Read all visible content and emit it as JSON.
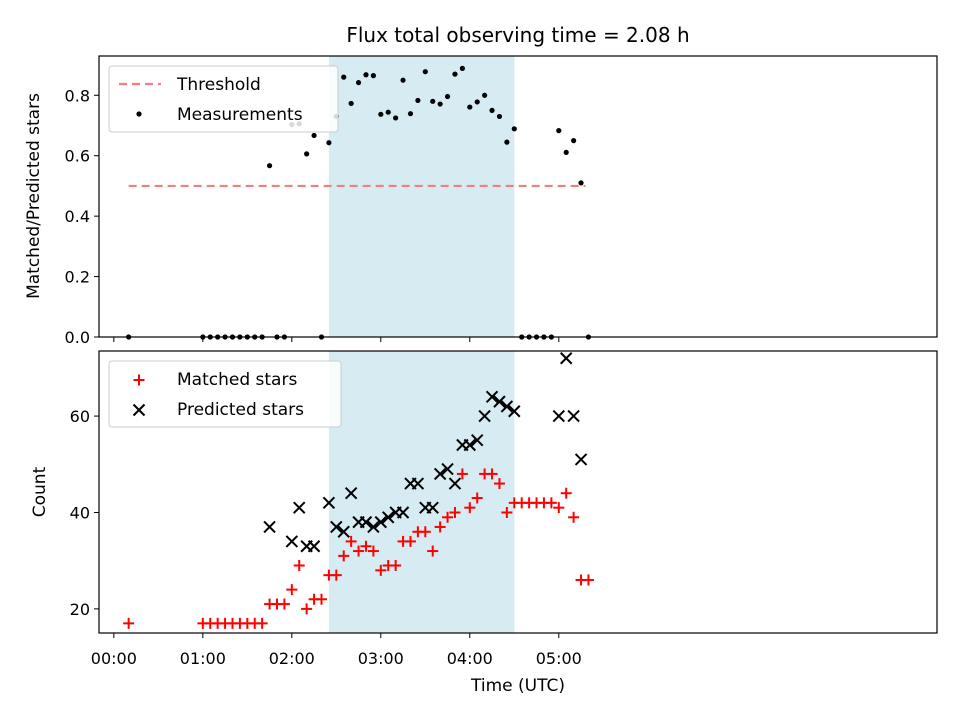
{
  "chart_data": {
    "title": "Flux total observing time = 2.08 h",
    "xlabel": "Time (UTC)",
    "x_unit": "minutes after 00:00 UTC",
    "xlim": [
      -10,
      555
    ],
    "xticks": [
      {
        "value": 0,
        "label": "00:00"
      },
      {
        "value": 60,
        "label": "01:00"
      },
      {
        "value": 120,
        "label": "02:00"
      },
      {
        "value": 180,
        "label": "03:00"
      },
      {
        "value": 240,
        "label": "04:00"
      },
      {
        "value": 300,
        "label": "05:00"
      }
    ],
    "shaded_interval": {
      "start": 145,
      "end": 270,
      "color": "#add8e6"
    },
    "panels": [
      {
        "type": "scatter",
        "ylabel": "Matched/Predicted stars",
        "ylim": [
          0,
          0.93
        ],
        "yticks": [
          0,
          0.2,
          0.4,
          0.6,
          0.8
        ],
        "ytick_labels": [
          "0.0",
          "0.2",
          "0.4",
          "0.6",
          "0.8"
        ],
        "legend": {
          "position": "top-left",
          "entries": [
            "Threshold",
            "Measurements"
          ]
        },
        "threshold": {
          "name": "Threshold",
          "value": 0.5,
          "x_start": 10,
          "x_end": 318,
          "color": "#f08080"
        },
        "series": [
          {
            "name": "Measurements",
            "marker": "dot",
            "color": "#000000",
            "x": [
              10,
              60,
              65,
              70,
              75,
              80,
              85,
              90,
              95,
              100,
              105,
              110,
              115,
              120,
              125,
              130,
              135,
              140,
              145,
              150,
              155,
              160,
              165,
              170,
              175,
              180,
              185,
              190,
              195,
              200,
              205,
              210,
              215,
              220,
              225,
              230,
              235,
              240,
              245,
              250,
              255,
              260,
              265,
              270,
              275,
              280,
              285,
              290,
              295,
              300,
              305,
              310,
              315,
              320
            ],
            "y": [
              0.0,
              0.0,
              0.0,
              0.0,
              0.0,
              0.0,
              0.0,
              0.0,
              0.0,
              0.0,
              0.567,
              0.0,
              0.0,
              0.703,
              0.706,
              0.606,
              0.667,
              0.0,
              0.643,
              0.73,
              0.86,
              0.773,
              0.842,
              0.868,
              0.865,
              0.737,
              0.744,
              0.725,
              0.85,
              0.739,
              0.783,
              0.878,
              0.78,
              0.771,
              0.796,
              0.87,
              0.889,
              0.761,
              0.778,
              0.8,
              0.75,
              0.73,
              0.645,
              0.689,
              0.0,
              0.0,
              0.0,
              0.0,
              0.0,
              0.683,
              0.611,
              0.65,
              0.51,
              0.0
            ]
          }
        ]
      },
      {
        "type": "scatter",
        "ylabel": "Count",
        "ylim": [
          15,
          73.5
        ],
        "yticks": [
          20,
          40,
          60
        ],
        "ytick_labels": [
          "20",
          "40",
          "60"
        ],
        "legend": {
          "position": "top-left",
          "entries": [
            "Matched stars",
            "Predicted stars"
          ]
        },
        "series": [
          {
            "name": "Matched stars",
            "marker": "plus",
            "color": "#ff0000",
            "x": [
              10,
              60,
              65,
              70,
              75,
              80,
              85,
              90,
              95,
              100,
              105,
              110,
              115,
              120,
              125,
              130,
              135,
              140,
              145,
              150,
              155,
              160,
              165,
              170,
              175,
              180,
              185,
              190,
              195,
              200,
              205,
              210,
              215,
              220,
              225,
              230,
              235,
              240,
              245,
              250,
              255,
              260,
              265,
              270,
              275,
              280,
              285,
              290,
              295,
              300,
              305,
              310,
              315,
              320
            ],
            "y": [
              17,
              17,
              17,
              17,
              17,
              17,
              17,
              17,
              17,
              17,
              21,
              21,
              21,
              24,
              29,
              20,
              22,
              22,
              27,
              27,
              31,
              34,
              32,
              33,
              32,
              28,
              29,
              29,
              34,
              34,
              36,
              36,
              32,
              37,
              39,
              40,
              48,
              41,
              43,
              48,
              48,
              46,
              40,
              42,
              42,
              42,
              42,
              42,
              42,
              41,
              44,
              39,
              26,
              26
            ]
          },
          {
            "name": "Predicted stars",
            "marker": "x",
            "color": "#000000",
            "x": [
              105,
              120,
              125,
              130,
              135,
              145,
              150,
              155,
              160,
              165,
              170,
              175,
              180,
              185,
              190,
              195,
              200,
              205,
              210,
              215,
              220,
              225,
              230,
              235,
              240,
              245,
              250,
              255,
              260,
              265,
              270,
              300,
              305,
              310,
              315
            ],
            "y": [
              37,
              34,
              41,
              33,
              33,
              42,
              37,
              36,
              44,
              38,
              38,
              37,
              38,
              39,
              40,
              40,
              46,
              46,
              41,
              41,
              48,
              49,
              46,
              54,
              54,
              55,
              60,
              64,
              63,
              62,
              61,
              60,
              72,
              60,
              51
            ]
          }
        ]
      }
    ]
  }
}
